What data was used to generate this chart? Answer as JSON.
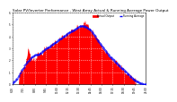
{
  "title": "Solar PV/Inverter Performance - West Array Actual & Running Average Power Output",
  "title_color": "#000000",
  "legend_actual": "Actual Output",
  "legend_avg": "Running Average",
  "legend_actual_color": "#ff0000",
  "legend_avg_color": "#0000ff",
  "background_color": "#ffffff",
  "plot_bg_color": "#ffffff",
  "grid_color": "#aaaaaa",
  "area_color": "#ff0000",
  "avg_color": "#0000ff",
  "ylim": [
    0,
    1.12
  ],
  "num_points": 200,
  "x_tick_labels": [
    "6:00",
    "7:15",
    "8:30",
    "9:45",
    "11:00",
    "12:15",
    "13:30",
    "14:45",
    "16:00",
    "17:15",
    "18:30",
    "19:45",
    "21:00"
  ],
  "y_tick_labels": [
    "0",
    "1",
    "2",
    "3",
    "4",
    "5",
    "6"
  ],
  "title_fontsize": 3.0,
  "tick_fontsize": 2.0
}
